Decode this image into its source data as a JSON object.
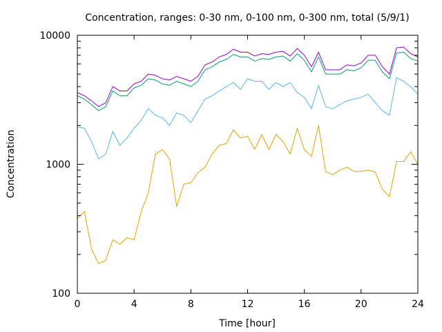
{
  "chart_data": {
    "type": "line",
    "title": "Concentration, ranges: 0-30 nm, 0-100 nm, 0-300 nm, total (5/9/1)",
    "xlabel": "Time [hour]",
    "ylabel": "Concentration",
    "xlim": [
      0,
      24
    ],
    "ylim": [
      100,
      10000
    ],
    "yscale": "log",
    "grid": false,
    "legend": "none",
    "x_ticks": [
      0,
      4,
      8,
      12,
      16,
      20,
      24
    ],
    "x_tick_labels": [
      "0",
      "4",
      "8",
      "12",
      "16",
      "20",
      "24"
    ],
    "y_ticks": [
      100,
      1000,
      10000
    ],
    "y_tick_labels": [
      "100",
      "1000",
      "10000"
    ],
    "x": [
      0,
      0.5,
      1,
      1.5,
      2,
      2.5,
      3,
      3.5,
      4,
      4.5,
      5,
      5.5,
      6,
      6.5,
      7,
      7.5,
      8,
      8.5,
      9,
      9.5,
      10,
      10.5,
      11,
      11.5,
      12,
      12.5,
      13,
      13.5,
      14,
      14.5,
      15,
      15.5,
      16,
      16.5,
      17,
      17.5,
      18,
      18.5,
      19,
      19.5,
      20,
      20.5,
      21,
      21.5,
      22,
      22.5,
      23,
      23.5,
      24
    ],
    "series": [
      {
        "color": "#e69f00",
        "values": [
          380,
          430,
          220,
          170,
          180,
          260,
          240,
          270,
          260,
          430,
          600,
          1200,
          1300,
          1100,
          470,
          700,
          720,
          860,
          950,
          1200,
          1400,
          1450,
          1850,
          1600,
          1650,
          1300,
          1700,
          1300,
          1700,
          1500,
          1200,
          1900,
          1300,
          1150,
          2000,
          880,
          830,
          900,
          950,
          880,
          880,
          900,
          870,
          640,
          560,
          1050,
          1050,
          1250,
          1000
        ]
      },
      {
        "color": "#56b4e9",
        "values": [
          1950,
          1900,
          1500,
          1100,
          1200,
          1800,
          1400,
          1600,
          1900,
          2200,
          2700,
          2400,
          2300,
          2000,
          2500,
          2400,
          2100,
          2600,
          3200,
          3400,
          3700,
          4000,
          4300,
          3800,
          4600,
          4400,
          4400,
          3800,
          4300,
          4000,
          4300,
          3600,
          3300,
          2700,
          4100,
          2800,
          2700,
          2900,
          3100,
          3200,
          3300,
          3500,
          3000,
          2600,
          2400,
          4700,
          4400,
          4000,
          3500
        ]
      },
      {
        "color": "#009e73",
        "values": [
          3400,
          3200,
          2900,
          2600,
          2800,
          3700,
          3400,
          3400,
          3900,
          4100,
          4600,
          4500,
          4200,
          4100,
          4400,
          4200,
          4000,
          4400,
          5400,
          5700,
          6200,
          6500,
          7100,
          6800,
          6800,
          6300,
          6600,
          6500,
          6800,
          6900,
          6300,
          7200,
          6400,
          5200,
          6800,
          5000,
          5000,
          5000,
          5400,
          5300,
          5600,
          6400,
          6400,
          5200,
          4600,
          7300,
          7400,
          6600,
          6300
        ]
      },
      {
        "color": "#9400d3",
        "values": [
          3600,
          3400,
          3100,
          2800,
          3000,
          4000,
          3700,
          3700,
          4200,
          4400,
          5000,
          4900,
          4600,
          4500,
          4800,
          4600,
          4400,
          4800,
          5900,
          6200,
          6800,
          7100,
          7800,
          7400,
          7400,
          6900,
          7200,
          7100,
          7400,
          7500,
          6900,
          7900,
          7000,
          5700,
          7400,
          5400,
          5400,
          5400,
          5900,
          5800,
          6100,
          7000,
          7000,
          5700,
          5000,
          8000,
          8100,
          7200,
          6800
        ]
      }
    ]
  }
}
